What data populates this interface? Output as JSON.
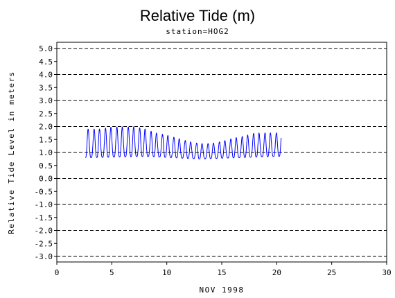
{
  "chart_data": {
    "type": "line",
    "title": "Relative Tide (m)",
    "subtitle": "station=HOG2",
    "xlabel": "NOV 1998",
    "ylabel": "Relative Tide Level in meters",
    "xlim": [
      0,
      30
    ],
    "ylim": [
      -3.0,
      5.0
    ],
    "x_ticks": [
      0,
      5,
      10,
      15,
      20,
      25,
      30
    ],
    "y_ticks": [
      "5.0",
      "4.5",
      "4.0",
      "3.5",
      "3.0",
      "2.5",
      "2.0",
      "1.5",
      "1.0",
      "0.5",
      "0.0",
      "-0.5",
      "-1.0",
      "-1.5",
      "-2.0",
      "-2.5",
      "-3.0"
    ],
    "grid": {
      "style": "dashed",
      "y_values": [
        5,
        4,
        3,
        2,
        1,
        0,
        -1,
        -2,
        -3
      ]
    },
    "series": [
      {
        "color": "#0000ff",
        "x_start": 2.6,
        "x_end": 20.4,
        "cycles_per_day": 1.93,
        "daily_high_peaks": [
          {
            "x": 3.0,
            "y": 2.2
          },
          {
            "x": 4.0,
            "y": 2.2
          },
          {
            "x": 5.0,
            "y": 2.3
          },
          {
            "x": 6.0,
            "y": 2.3
          },
          {
            "x": 7.0,
            "y": 2.3
          },
          {
            "x": 8.0,
            "y": 2.2
          },
          {
            "x": 9.0,
            "y": 2.0
          },
          {
            "x": 10.0,
            "y": 1.9
          },
          {
            "x": 11.0,
            "y": 1.75
          },
          {
            "x": 12.0,
            "y": 1.6
          },
          {
            "x": 13.0,
            "y": 1.5
          },
          {
            "x": 14.0,
            "y": 1.5
          },
          {
            "x": 15.0,
            "y": 1.6
          },
          {
            "x": 16.0,
            "y": 1.75
          },
          {
            "x": 17.0,
            "y": 1.85
          },
          {
            "x": 18.0,
            "y": 2.0
          },
          {
            "x": 19.0,
            "y": 2.0
          },
          {
            "x": 20.0,
            "y": 2.0
          }
        ],
        "lower_high_ratio": 0.55,
        "low_values": [
          {
            "x": 3.0,
            "y": 0.8
          },
          {
            "x": 8.0,
            "y": 0.85
          },
          {
            "x": 13.0,
            "y": 0.75
          },
          {
            "x": 20.0,
            "y": 0.85
          }
        ]
      }
    ]
  }
}
